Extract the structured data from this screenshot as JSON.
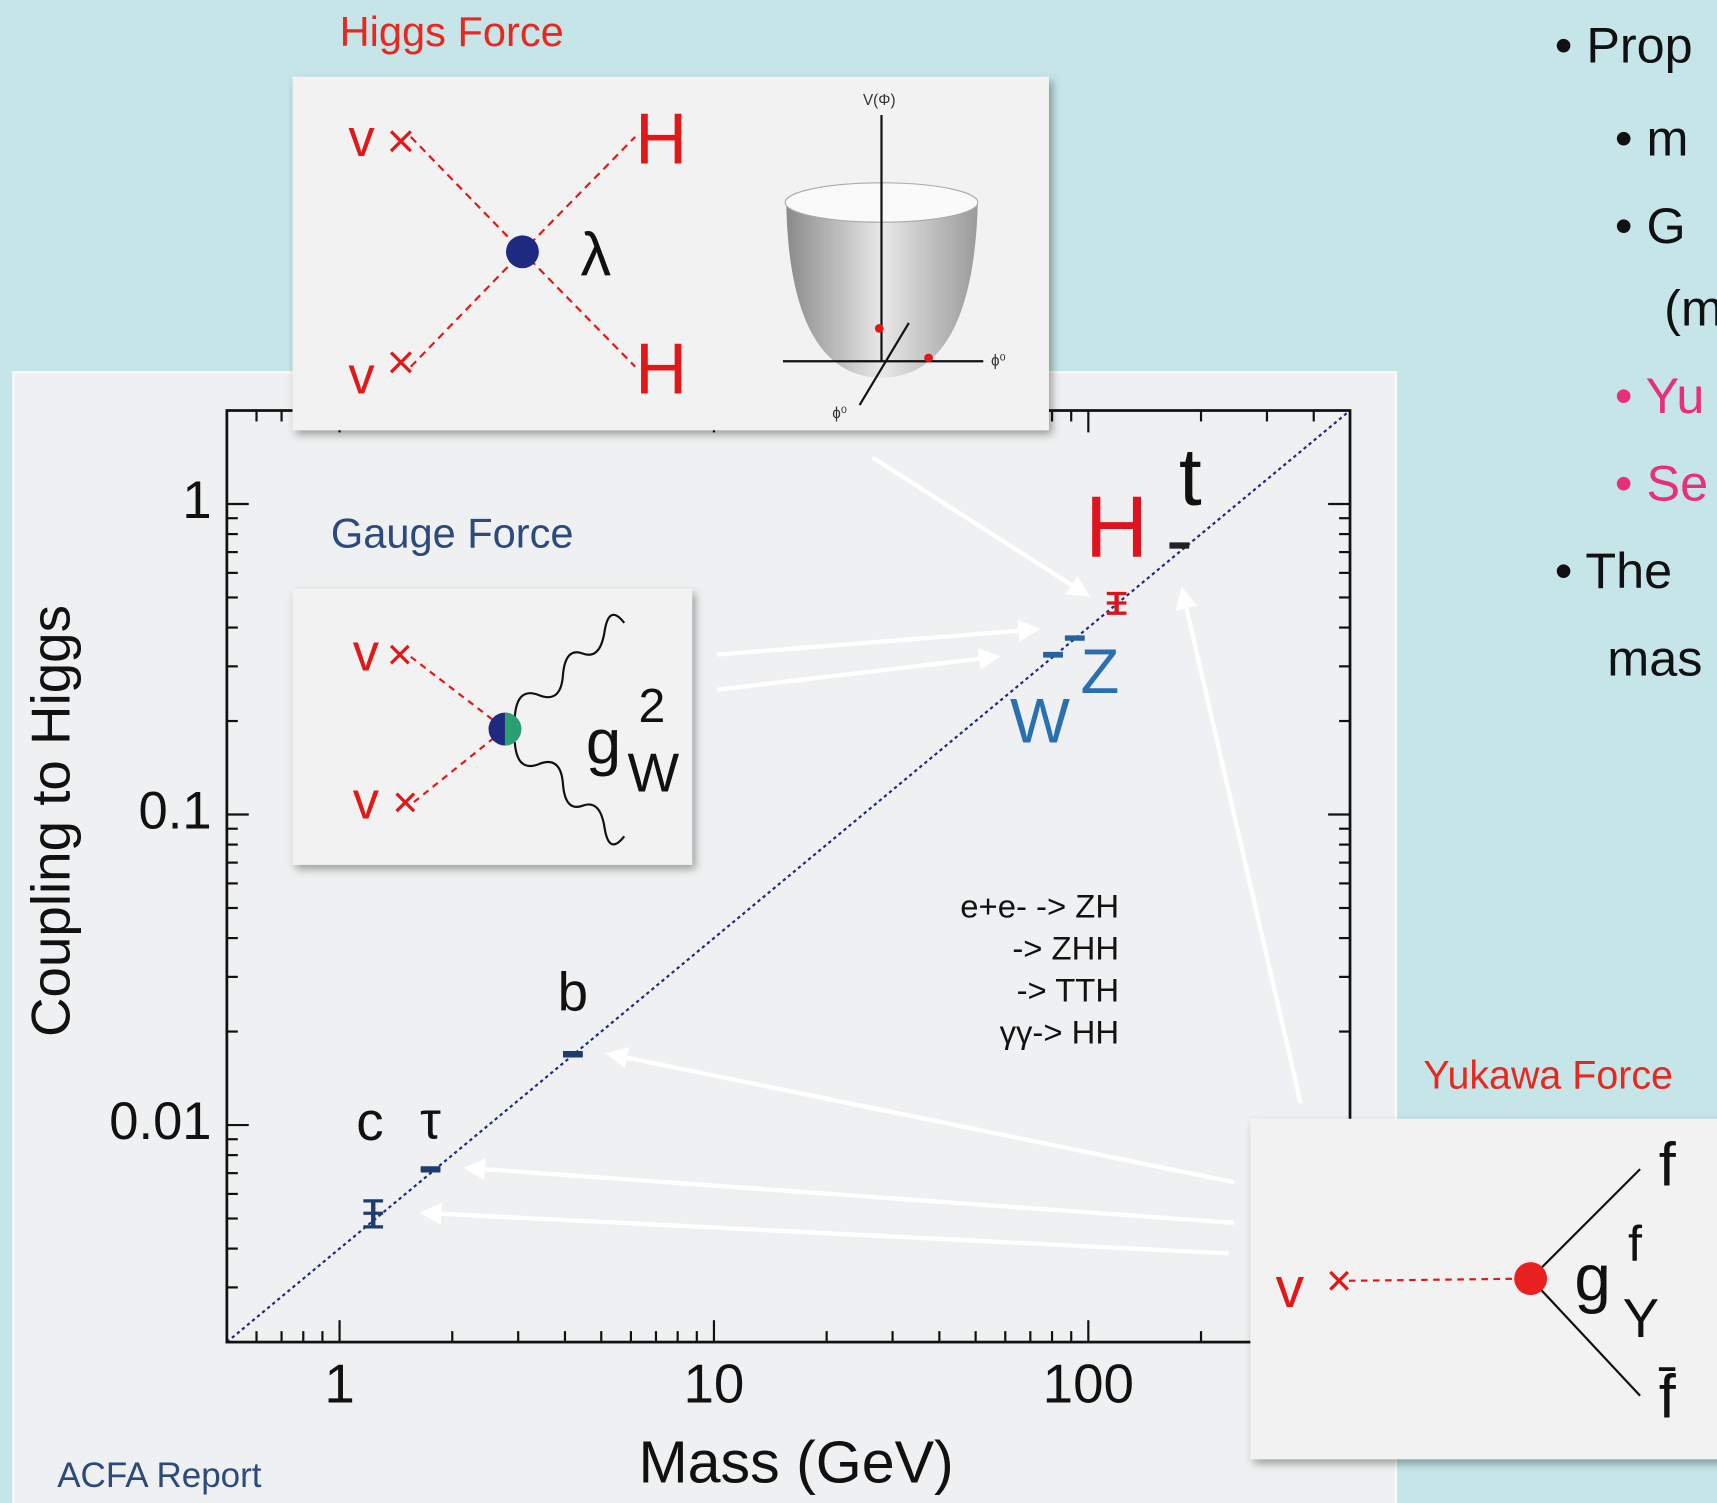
{
  "chart_data": {
    "type": "scatter",
    "x_label": "Mass (GeV)",
    "y_label": "Coupling to Higgs",
    "x_log": true,
    "y_log": true,
    "xlim": [
      0.5,
      500
    ],
    "ylim": [
      0.002,
      2
    ],
    "xticks": [
      1,
      10,
      100
    ],
    "yticks": [
      0.01,
      0.1,
      1
    ],
    "xminor": [
      0.6,
      0.7,
      0.8,
      0.9,
      2,
      3,
      4,
      5,
      6,
      7,
      8,
      9,
      20,
      30,
      40,
      50,
      60,
      70,
      80,
      90,
      200,
      300,
      400
    ],
    "yminor": [
      0.003,
      0.004,
      0.005,
      0.006,
      0.007,
      0.008,
      0.009,
      0.02,
      0.03,
      0.04,
      0.05,
      0.06,
      0.07,
      0.08,
      0.09,
      0.2,
      0.3,
      0.4,
      0.5,
      0.6,
      0.7,
      0.8,
      0.9
    ],
    "x": [
      1.23,
      1.75,
      4.2,
      80.5,
      92,
      119,
      175
    ],
    "values": [
      0.0052,
      0.0072,
      0.0169,
      0.327,
      0.37,
      0.48,
      0.735
    ],
    "errors": [
      0.0005,
      8e-05,
      0.0002,
      0.003,
      0.003,
      0.035,
      0.008
    ],
    "point_labels": [
      "c",
      "τ",
      "b",
      "W",
      "Z",
      "H",
      "t"
    ],
    "colors": [
      "#1f3c6e",
      "#1f3c6e",
      "#1f3c6e",
      "#2563a6",
      "#2563a6",
      "#d8141c",
      "#222222"
    ],
    "label_colors": [
      "#111111",
      "#111111",
      "#111111",
      "#2a6fb0",
      "#2a6fb0",
      "#e0141e",
      "#111111"
    ],
    "diagonal_color": "#1a2a80",
    "annotation": [
      "e+e- -> ZH",
      "-> ZHH",
      "-> TTH",
      "γγ-> HH"
    ],
    "source": "ACFA Report"
  },
  "insets": {
    "higgs": {
      "title": "Higgs Force",
      "vev": [
        "v",
        "v"
      ],
      "higgs": [
        "H",
        "H"
      ],
      "coupling": "λ",
      "potential_axis": "V(Φ)",
      "field_axes": [
        "ϕ⁰",
        "ϕ⁰"
      ]
    },
    "gauge": {
      "title": "Gauge Force",
      "vev": [
        "v",
        "v"
      ],
      "coupling": "g",
      "sup": "2",
      "sub": "W"
    },
    "yukawa": {
      "title": "Yukawa Force",
      "vev": "v",
      "coupling": "g",
      "sup": "f",
      "sub": "Y",
      "fermions": [
        "f",
        "f̄"
      ]
    }
  },
  "bullets": [
    "• Prop",
    "• m",
    "• G",
    "(m",
    "• Yu",
    "• Se",
    "• The",
    "mas"
  ]
}
